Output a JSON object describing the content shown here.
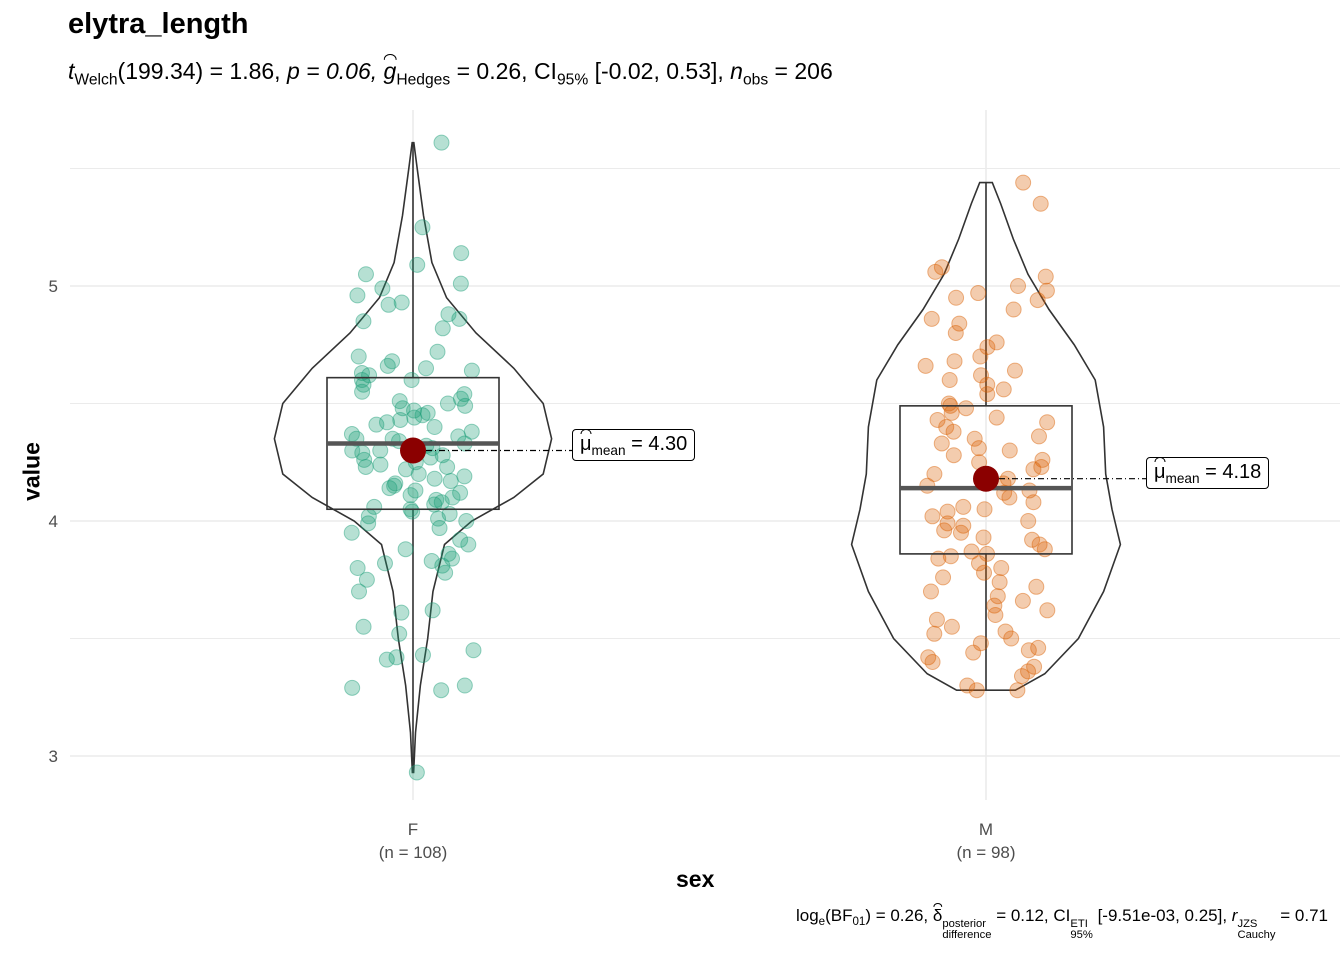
{
  "chart_data": {
    "type": "violin",
    "title": "elytra_length",
    "xlabel": "sex",
    "ylabel": "value",
    "ylim": [
      2.75,
      5.72
    ],
    "yticks": [
      3,
      4,
      5
    ],
    "grid": true,
    "subtitle": {
      "t_symbol": "t",
      "t_sub": "Welch",
      "df": "(199.34) = 1.86,",
      "p": "p = 0.06,",
      "g_symbol": "g",
      "g_sub": "Hedges",
      "g_val": "= 0.26, CI",
      "ci_sub": "95%",
      "ci_val": "[-0.02, 0.53],",
      "n_symbol": "n",
      "n_sub": "obs",
      "n_val": "= 206"
    },
    "caption": {
      "log_text": "log",
      "log_sub": "e",
      "bf_text": "(BF",
      "bf_sub": "01",
      "bf_val": ") = 0.26,",
      "delta_sym": "δ",
      "delta_sup": "posterior",
      "delta_sub": "difference",
      "delta_val": "= 0.12, CI",
      "ci_sup": "ETI",
      "ci_sub": "95%",
      "ci_val": "[-9.51e-03, 0.25],",
      "r_sym": "r",
      "r_sup": "JZS",
      "r_sub": "Cauchy",
      "r_val": "= 0.71"
    },
    "groups": [
      {
        "name": "F",
        "n_label": "(n = 108)",
        "color": "#1B9E77",
        "mean": 4.3,
        "mean_label_sym": "μ",
        "mean_label_sub": "mean",
        "mean_label_val": "= 4.30",
        "box": {
          "q1": 4.05,
          "median": 4.33,
          "q3": 4.61,
          "whisker_low": 2.93,
          "whisker_high": 5.61
        },
        "violin": [
          [
            2.93,
            0.3
          ],
          [
            3.1,
            1.2
          ],
          [
            3.3,
            3.5
          ],
          [
            3.5,
            7
          ],
          [
            3.7,
            9.5
          ],
          [
            3.9,
            15
          ],
          [
            4.0,
            28
          ],
          [
            4.1,
            48
          ],
          [
            4.2,
            62
          ],
          [
            4.35,
            66
          ],
          [
            4.5,
            62
          ],
          [
            4.65,
            48
          ],
          [
            4.8,
            30
          ],
          [
            4.95,
            16
          ],
          [
            5.1,
            9
          ],
          [
            5.3,
            5
          ],
          [
            5.5,
            2
          ],
          [
            5.61,
            0.4
          ]
        ],
        "points": [
          5.61,
          5.25,
          5.14,
          5.09,
          5.05,
          5.01,
          4.99,
          4.96,
          4.93,
          4.92,
          4.88,
          4.86,
          4.85,
          4.82,
          4.72,
          4.7,
          4.68,
          4.66,
          4.65,
          4.64,
          4.63,
          4.62,
          4.6,
          4.6,
          4.58,
          4.55,
          4.54,
          4.52,
          4.51,
          4.5,
          4.49,
          4.48,
          4.47,
          4.46,
          4.45,
          4.44,
          4.43,
          4.42,
          4.41,
          4.4,
          4.38,
          4.37,
          4.36,
          4.35,
          4.35,
          4.34,
          4.33,
          4.32,
          4.31,
          4.3,
          4.3,
          4.29,
          4.28,
          4.27,
          4.26,
          4.25,
          4.24,
          4.23,
          4.23,
          4.22,
          4.2,
          4.19,
          4.18,
          4.17,
          4.16,
          4.15,
          4.14,
          4.13,
          4.12,
          4.11,
          4.1,
          4.09,
          4.08,
          4.07,
          4.06,
          4.05,
          4.04,
          4.03,
          4.02,
          4.01,
          4.0,
          3.99,
          3.97,
          3.95,
          3.92,
          3.9,
          3.88,
          3.86,
          3.84,
          3.83,
          3.82,
          3.81,
          3.8,
          3.78,
          3.75,
          3.7,
          3.62,
          3.61,
          3.55,
          3.52,
          3.45,
          3.43,
          3.42,
          3.41,
          3.3,
          3.29,
          3.28,
          2.93
        ]
      },
      {
        "name": "M",
        "n_label": "(n = 98)",
        "color": "#D95F02",
        "mean": 4.18,
        "mean_label_sym": "μ",
        "mean_label_sub": "mean",
        "mean_label_val": "= 4.18",
        "box": {
          "q1": 3.86,
          "median": 4.14,
          "q3": 4.49,
          "whisker_low": 3.28,
          "whisker_high": 5.44
        },
        "violin": [
          [
            3.28,
            14
          ],
          [
            3.35,
            28
          ],
          [
            3.5,
            44
          ],
          [
            3.7,
            56
          ],
          [
            3.9,
            64
          ],
          [
            4.05,
            60
          ],
          [
            4.2,
            57
          ],
          [
            4.4,
            56
          ],
          [
            4.6,
            52
          ],
          [
            4.75,
            42
          ],
          [
            4.9,
            30
          ],
          [
            5.05,
            20
          ],
          [
            5.2,
            13
          ],
          [
            5.35,
            7
          ],
          [
            5.44,
            3
          ]
        ],
        "points": [
          5.44,
          5.35,
          5.08,
          5.06,
          5.04,
          5.0,
          4.98,
          4.97,
          4.95,
          4.94,
          4.9,
          4.86,
          4.84,
          4.8,
          4.76,
          4.74,
          4.7,
          4.68,
          4.66,
          4.64,
          4.62,
          4.6,
          4.58,
          4.56,
          4.54,
          4.5,
          4.49,
          4.48,
          4.46,
          4.44,
          4.43,
          4.42,
          4.4,
          4.38,
          4.36,
          4.35,
          4.33,
          4.31,
          4.3,
          4.28,
          4.26,
          4.25,
          4.23,
          4.22,
          4.2,
          4.18,
          4.16,
          4.15,
          4.13,
          4.12,
          4.1,
          4.08,
          4.06,
          4.05,
          4.04,
          4.02,
          4.0,
          3.99,
          3.98,
          3.96,
          3.95,
          3.93,
          3.92,
          3.9,
          3.88,
          3.87,
          3.86,
          3.85,
          3.84,
          3.82,
          3.8,
          3.78,
          3.76,
          3.74,
          3.72,
          3.7,
          3.68,
          3.66,
          3.64,
          3.62,
          3.6,
          3.58,
          3.55,
          3.53,
          3.52,
          3.5,
          3.48,
          3.46,
          3.45,
          3.44,
          3.42,
          3.4,
          3.38,
          3.36,
          3.34,
          3.3,
          3.28,
          3.28
        ]
      }
    ]
  }
}
